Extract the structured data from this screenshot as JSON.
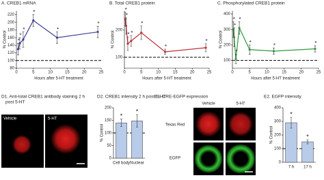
{
  "chart_data": [
    {
      "type": "line",
      "title": "A. CREB1 mRNA",
      "ylabel": "% Control",
      "xlabel": "Hours after 5-HT treatment",
      "color": "#3c3c96",
      "x": [
        0.5,
        1,
        2,
        5,
        12,
        24
      ],
      "values": [
        130,
        145,
        155,
        205,
        160,
        175
      ],
      "errors": [
        15,
        15,
        20,
        15,
        15,
        15
      ],
      "sig": [
        "*",
        "*",
        "*",
        "*",
        "*",
        "*"
      ],
      "reference_line": 100,
      "xlim": [
        0,
        25
      ],
      "xticks": [
        0,
        5,
        10,
        15,
        20,
        25
      ],
      "ylim": [
        80,
        230
      ],
      "yticks": [
        80,
        100,
        120,
        140,
        160,
        180,
        200,
        220
      ]
    },
    {
      "type": "line",
      "title": "B. Total CREB1 protein",
      "ylabel": "% Control",
      "xlabel": "Hours after 5-HT treatment",
      "color": "#c0303a",
      "x": [
        0.25,
        0.5,
        1,
        2,
        5,
        12,
        24
      ],
      "values": [
        240,
        215,
        150,
        160,
        190,
        120,
        135
      ],
      "errors": [
        25,
        30,
        25,
        20,
        25,
        10,
        15
      ],
      "sig": [
        "*",
        "*",
        "*",
        "*",
        "*",
        "*",
        "*"
      ],
      "reference_line": 100,
      "xlim": [
        0,
        25
      ],
      "xticks": [
        0,
        5,
        10,
        15,
        20,
        25
      ],
      "ylim": [
        60,
        270
      ],
      "yticks": [
        100,
        200
      ]
    },
    {
      "type": "line",
      "title": "C. Phosphorylated CREB1 protein",
      "ylabel": "% Control",
      "xlabel": "Hours after 5-HT treatment",
      "color": "#2e9a3c",
      "x": [
        0.25,
        0.5,
        1,
        2,
        5,
        12,
        24
      ],
      "values": [
        300,
        250,
        110,
        310,
        170,
        160,
        175
      ],
      "errors": [
        50,
        60,
        30,
        40,
        30,
        20,
        20
      ],
      "sig": [
        "*",
        "*",
        "*",
        "*",
        "*",
        "*",
        "*"
      ],
      "reference_line": 100,
      "xlim": [
        0,
        25
      ],
      "xticks": [
        0,
        5,
        10,
        15,
        20,
        25
      ],
      "ylim": [
        50,
        420
      ],
      "yticks": [
        100,
        200,
        300,
        400
      ]
    },
    {
      "type": "bar",
      "title": "D2. CREB1 intensity 2 h post 5-HT",
      "ylabel": "% Control",
      "color": "#b8cbe8",
      "categories": [
        "Cell body",
        "Nuclear"
      ],
      "values": [
        140,
        148
      ],
      "errors": [
        15,
        25
      ],
      "sig": [
        "*",
        "*"
      ],
      "reference_line": 100,
      "ylim": [
        0,
        200
      ],
      "yticks": [
        0,
        50,
        100,
        150,
        200
      ]
    },
    {
      "type": "bar",
      "title": "E2. EGFP intensity",
      "ylabel": "% Control",
      "color": "#b8cbe8",
      "categories": [
        "7 h",
        "17 h"
      ],
      "values": [
        290,
        150
      ],
      "errors": [
        40,
        15
      ],
      "sig": [
        "*",
        "*"
      ],
      "reference_line": 100,
      "ylim": [
        0,
        400
      ],
      "yticks": [
        0,
        100,
        200,
        300,
        400
      ]
    }
  ],
  "panels": {
    "d1": {
      "title_lines": [
        "D1. Anti-total CREB1 antibody staining 2 h",
        "post 5-HT"
      ],
      "images": [
        "Vehicle",
        "5-HT"
      ]
    },
    "e1": {
      "title": "E1. CRE-EGFP expression",
      "columns": [
        "Vehicle",
        "5-HT"
      ],
      "rows": [
        "Texas Red",
        "EGFP"
      ]
    }
  }
}
